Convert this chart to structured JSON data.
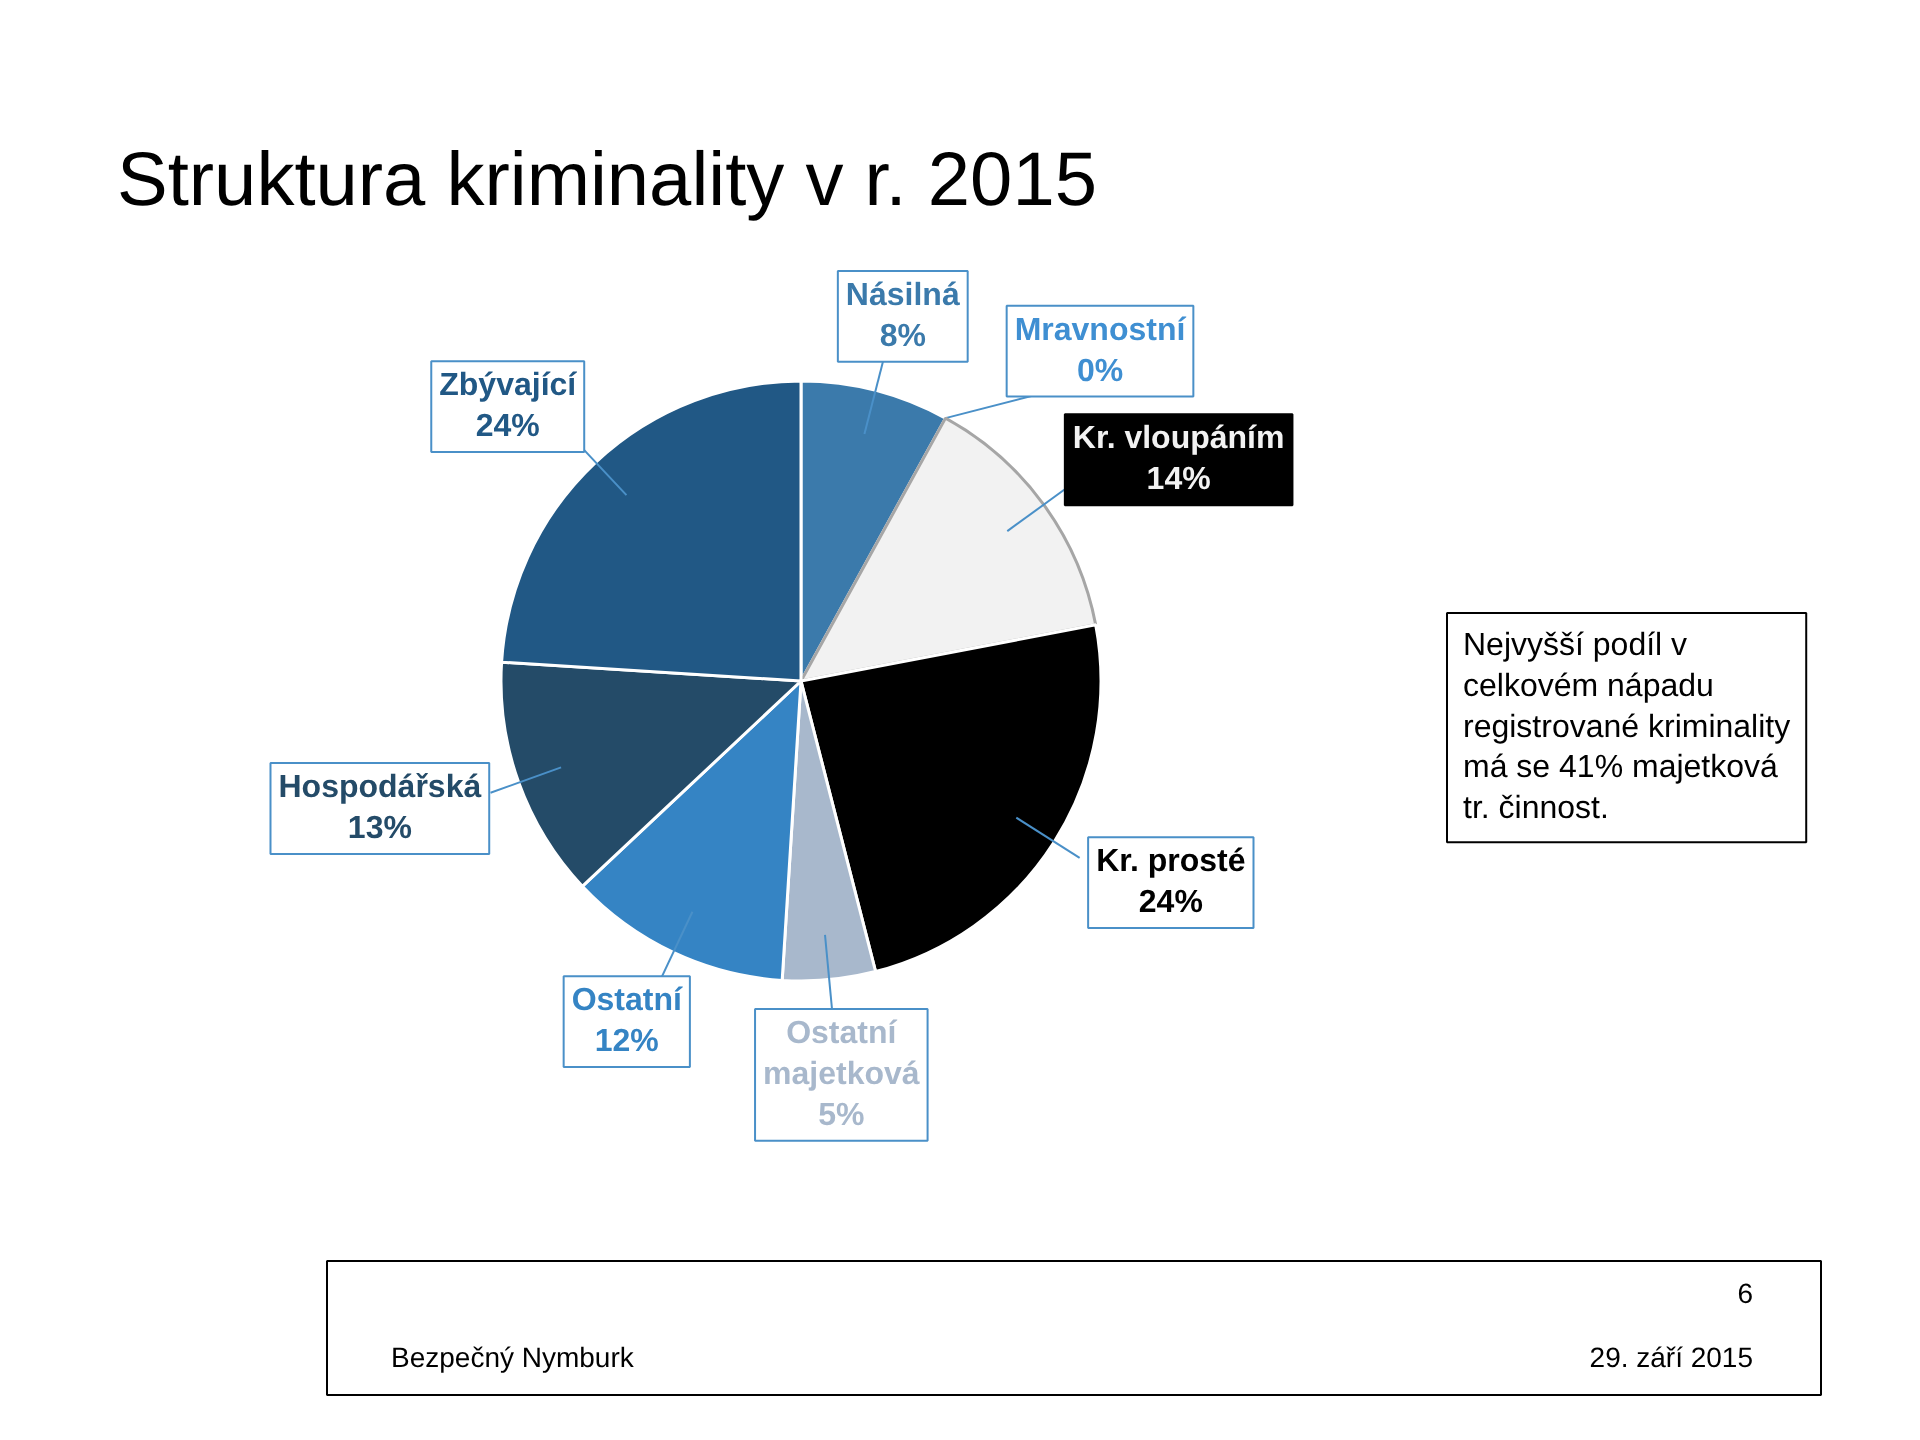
{
  "chart_data": {
    "type": "pie",
    "title": "Struktura kriminality v r. 2015",
    "categories": [
      "Násilná",
      "Mravnostní",
      "Kr. vloupáním",
      "Kr. prosté",
      "Ostatní majetková",
      "Ostatní",
      "Hospodářská",
      "Zbývající"
    ],
    "values": [
      8,
      0,
      14,
      24,
      5,
      12,
      13,
      24
    ],
    "value_labels": [
      "8%",
      "0%",
      "14%",
      "24%",
      "5%",
      "12%",
      "13%",
      "24%"
    ],
    "colors": [
      "#3b7aab",
      "#3f8fd2",
      "#f2f2f2",
      "#000000",
      "#a8b8cc",
      "#3584c4",
      "#244b68",
      "#215885"
    ],
    "annotations": [
      "Nejvyšší podíl v\ncelkovém nápadu\nregistrované kriminality\nmá se 41% majetková\ntr. činnost.",
      "6",
      "Bezpečný Nymburk",
      "29. září 2015"
    ]
  }
}
